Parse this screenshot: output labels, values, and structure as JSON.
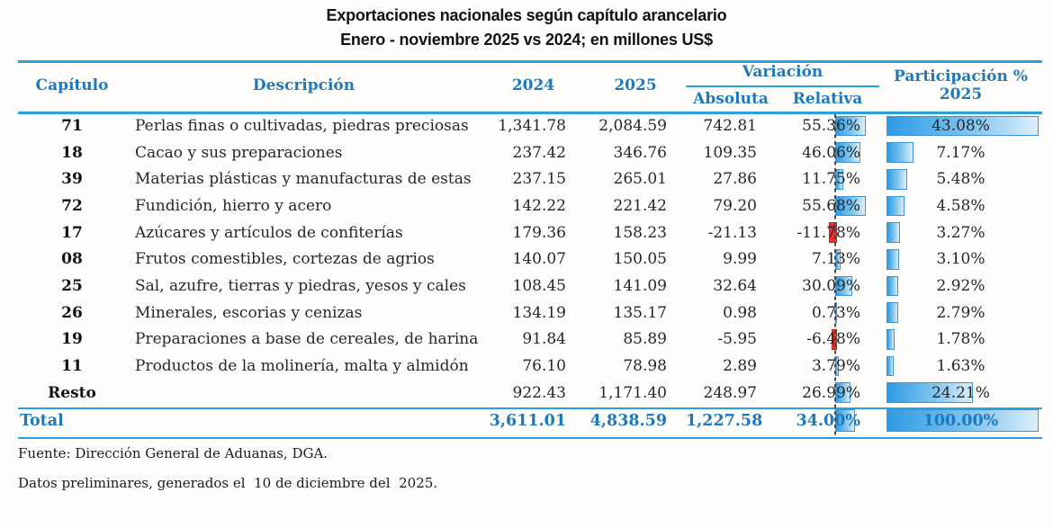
{
  "title": "Exportaciones nacionales según capítulo arancelario",
  "subtitle": "Enero - noviembre 2025 vs 2024; en millones US$",
  "header": {
    "capitulo": "Capítulo",
    "descripcion": "Descripción",
    "y2024": "2024",
    "y2025": "2025",
    "variacion": "Variación",
    "absoluta": "Absoluta",
    "relativa": "Relativa",
    "participacion_line1": "Participación %",
    "participacion_line2": "2025"
  },
  "footnotes": [
    "Fuente: Dirección General de Aduanas, DGA.",
    "Datos preliminares, generados el  10 de diciembre del  2025."
  ],
  "colors": {
    "header_text": "#1E78BC",
    "rule_blue": "#2AA1DC",
    "databar_fill_start": "#2E9BE4",
    "databar_fill_end": "#DCEEFA",
    "databar_border": "#3D95D6",
    "negative_bar": "#E8312D",
    "zero_axis_dash": "#4A4A4A",
    "body_text": "#262626"
  },
  "chart_data": {
    "type": "table",
    "title": "Exportaciones nacionales según capítulo arancelario",
    "subtitle": "Enero - noviembre 2025 vs 2024; en millones US$",
    "columns": [
      "Capítulo",
      "Descripción",
      "2024",
      "2025",
      "Variación Absoluta",
      "Variación Relativa",
      "Participación % 2025"
    ],
    "rows": [
      {
        "capitulo": "71",
        "descripcion": "Perlas finas o cultivadas, piedras preciosas",
        "v2024": "1,341.78",
        "v2025": "2,084.59",
        "absoluta": "742.81",
        "relativa": "55.36%",
        "relativa_value": 55.36,
        "participacion": "43.08%",
        "participacion_value": 43.08
      },
      {
        "capitulo": "18",
        "descripcion": "Cacao y sus preparaciones",
        "v2024": "237.42",
        "v2025": "346.76",
        "absoluta": "109.35",
        "relativa": "46.06%",
        "relativa_value": 46.06,
        "participacion": "7.17%",
        "participacion_value": 7.17
      },
      {
        "capitulo": "39",
        "descripcion": "Materias plásticas y manufacturas de estas",
        "v2024": "237.15",
        "v2025": "265.01",
        "absoluta": "27.86",
        "relativa": "11.75%",
        "relativa_value": 11.75,
        "participacion": "5.48%",
        "participacion_value": 5.48
      },
      {
        "capitulo": "72",
        "descripcion": "Fundición, hierro y acero",
        "v2024": "142.22",
        "v2025": "221.42",
        "absoluta": "79.20",
        "relativa": "55.68%",
        "relativa_value": 55.68,
        "participacion": "4.58%",
        "participacion_value": 4.58
      },
      {
        "capitulo": "17",
        "descripcion": "Azúcares y artículos de confiterías",
        "v2024": "179.36",
        "v2025": "158.23",
        "absoluta": "-21.13",
        "relativa": "-11.78%",
        "relativa_value": -11.78,
        "participacion": "3.27%",
        "participacion_value": 3.27
      },
      {
        "capitulo": "08",
        "descripcion": "Frutos comestibles, cortezas de agrios",
        "v2024": "140.07",
        "v2025": "150.05",
        "absoluta": "9.99",
        "relativa": "7.13%",
        "relativa_value": 7.13,
        "participacion": "3.10%",
        "participacion_value": 3.1
      },
      {
        "capitulo": "25",
        "descripcion": "Sal, azufre, tierras y piedras, yesos y cales",
        "v2024": "108.45",
        "v2025": "141.09",
        "absoluta": "32.64",
        "relativa": "30.09%",
        "relativa_value": 30.09,
        "participacion": "2.92%",
        "participacion_value": 2.92
      },
      {
        "capitulo": "26",
        "descripcion": "Minerales, escorias y cenizas",
        "v2024": "134.19",
        "v2025": "135.17",
        "absoluta": "0.98",
        "relativa": "0.73%",
        "relativa_value": 0.73,
        "participacion": "2.79%",
        "participacion_value": 2.79
      },
      {
        "capitulo": "19",
        "descripcion": "Preparaciones a base de cereales, de harina",
        "v2024": "91.84",
        "v2025": "85.89",
        "absoluta": "-5.95",
        "relativa": "-6.48%",
        "relativa_value": -6.48,
        "participacion": "1.78%",
        "participacion_value": 1.78
      },
      {
        "capitulo": "11",
        "descripcion": "Productos de la molinería, malta y almidón",
        "v2024": "76.10",
        "v2025": "78.98",
        "absoluta": "2.89",
        "relativa": "3.79%",
        "relativa_value": 3.79,
        "participacion": "1.63%",
        "participacion_value": 1.63
      },
      {
        "capitulo": "Resto",
        "descripcion": "",
        "v2024": "922.43",
        "v2025": "1,171.40",
        "absoluta": "248.97",
        "relativa": "26.99%",
        "relativa_value": 26.99,
        "participacion": "24.21%",
        "participacion_value": 24.21
      }
    ],
    "total_row": {
      "label": "Total",
      "v2024": "3,611.01",
      "v2025": "4,838.59",
      "absoluta": "1,227.58",
      "relativa": "34.00%",
      "relativa_value": 34.0,
      "participacion": "100.00%",
      "participacion_value": 100.0
    },
    "databars": {
      "relativa_scale_max": 55.68,
      "relativa_axis_pct": 57.4,
      "relativa_max_extent_pct": 27.8,
      "participacion_scale_max": 43.08
    },
    "grid": false,
    "legend_position": "none"
  }
}
